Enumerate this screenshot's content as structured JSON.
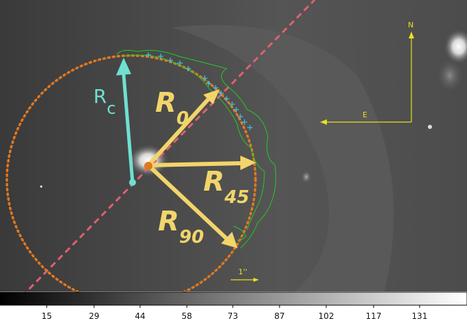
{
  "labels": {
    "rc_main": "R",
    "rc_sub": "c",
    "r0_main": "R",
    "r0_sub": "0",
    "r45_main": "R",
    "r45_sub": "45",
    "r90_main": "R",
    "r90_sub": "90",
    "north": "N",
    "east": "E",
    "scale": "1''"
  },
  "colors": {
    "background": "#4a4a4a",
    "cyan": "#6fe0d0",
    "yellow_arrow": "#f2d56a",
    "compass": "#e8e020",
    "orange_circle": "#e07820",
    "axis_line": "#e06070",
    "contour": "#22cc22",
    "star_marker": "#40c0e0"
  },
  "colorbar": {
    "ticks": [
      "15",
      "29",
      "44",
      "58",
      "73",
      "87",
      "102",
      "117",
      "131"
    ]
  }
}
